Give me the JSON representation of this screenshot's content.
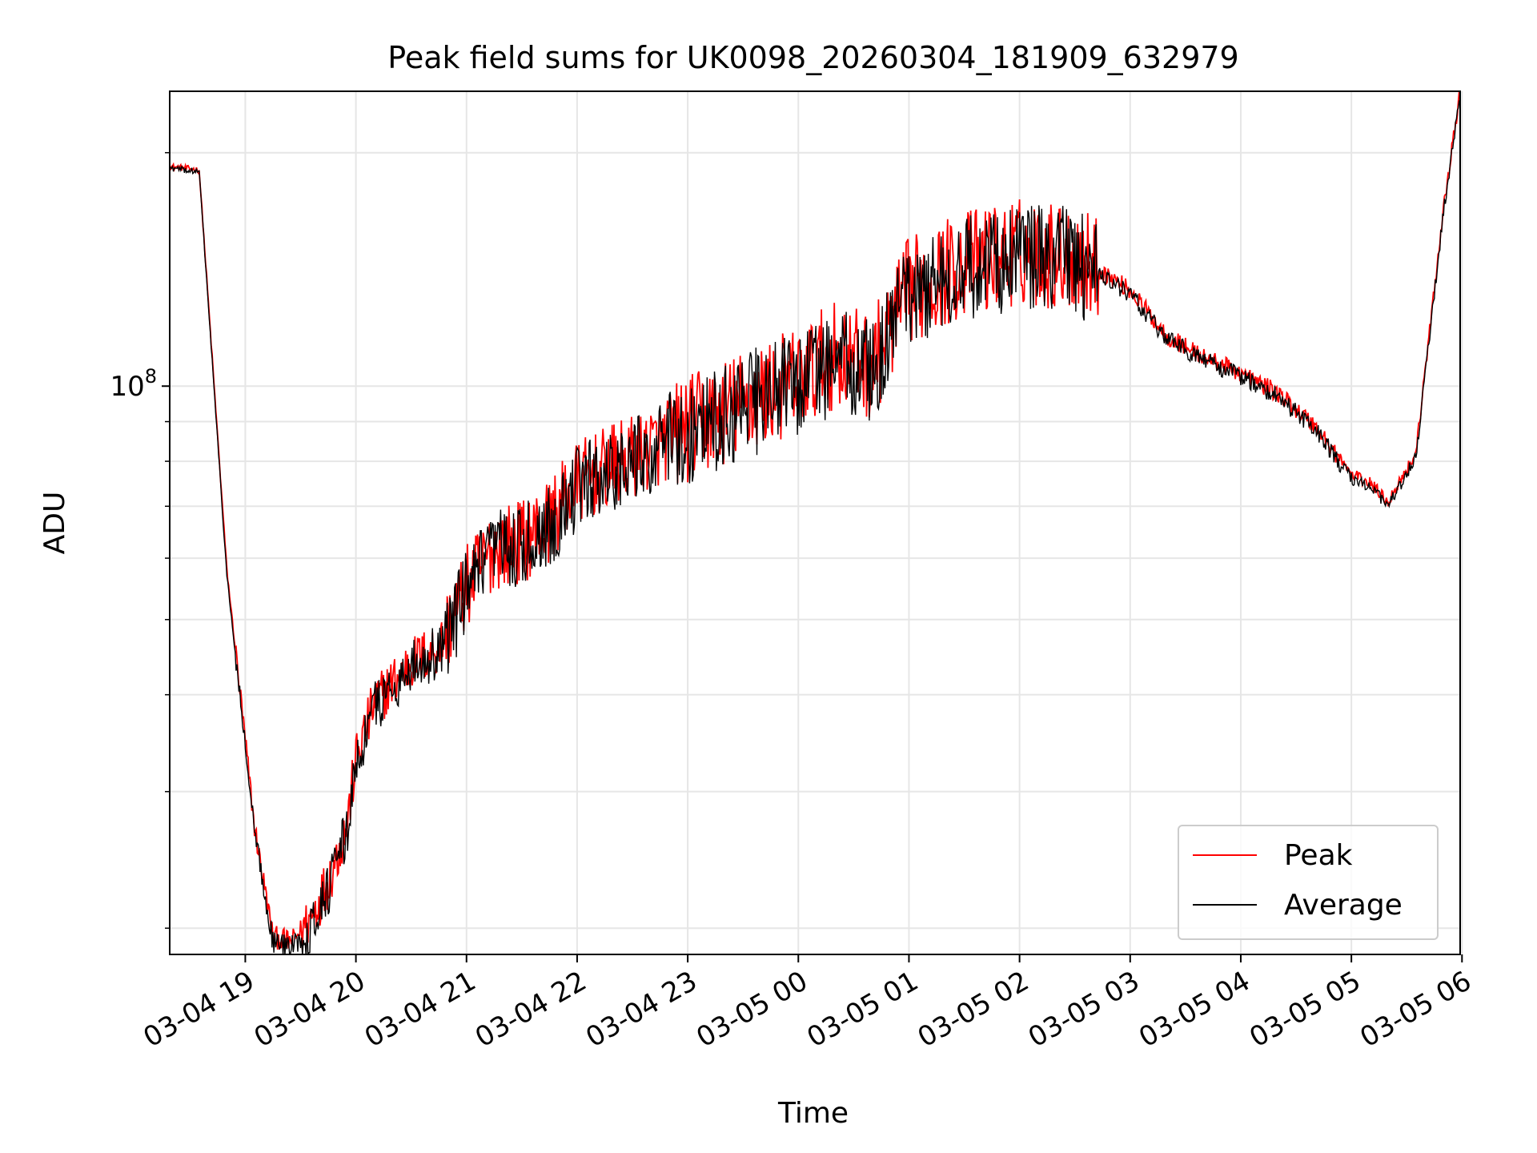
{
  "chart_data": {
    "type": "line",
    "title": "Peak field sums for UK0098_20260304_181909_632979",
    "xlabel": "Time",
    "ylabel": "ADU",
    "x_scale": "time",
    "y_scale": "log",
    "xlim": [
      "2026-03-04 18:19",
      "2026-03-05 05:59"
    ],
    "ylim": [
      18500000,
      240000000
    ],
    "x_ticks": [
      "03-04 19",
      "03-04 20",
      "03-04 21",
      "03-04 22",
      "03-04 23",
      "03-05 00",
      "03-05 01",
      "03-05 02",
      "03-05 03",
      "03-05 04",
      "03-05 05",
      "03-05 06"
    ],
    "y_ticks": [
      {
        "value": 100000000,
        "base": "10",
        "exp": "8"
      }
    ],
    "y_minor_ticks": [
      20000000,
      30000000,
      40000000,
      50000000,
      60000000,
      70000000,
      80000000,
      90000000,
      200000000
    ],
    "grid": true,
    "legend_position": "lower right",
    "legend": [
      {
        "label": "Peak",
        "color": "#ff0000"
      },
      {
        "label": "Average",
        "color": "#000000"
      }
    ],
    "series": [
      {
        "name": "Peak",
        "color": "#ff0000",
        "x": [
          "2026-03-04 18:19",
          "2026-03-04 18:35",
          "2026-03-04 18:50",
          "2026-03-04 19:05",
          "2026-03-04 19:15",
          "2026-03-04 19:25",
          "2026-03-04 19:35",
          "2026-03-04 19:45",
          "2026-03-04 19:55",
          "2026-03-04 20:00",
          "2026-03-04 20:10",
          "2026-03-04 20:30",
          "2026-03-04 20:45",
          "2026-03-04 21:00",
          "2026-03-04 21:15",
          "2026-03-04 21:30",
          "2026-03-04 21:45",
          "2026-03-04 22:00",
          "2026-03-04 22:30",
          "2026-03-04 23:00",
          "2026-03-04 23:30",
          "2026-03-05 00:00",
          "2026-03-05 00:20",
          "2026-03-05 00:40",
          "2026-03-05 01:00",
          "2026-03-05 01:30",
          "2026-03-05 02:00",
          "2026-03-05 02:30",
          "2026-03-05 02:50",
          "2026-03-05 03:00",
          "2026-03-05 03:20",
          "2026-03-05 03:40",
          "2026-03-05 04:00",
          "2026-03-05 04:20",
          "2026-03-05 04:40",
          "2026-03-05 05:00",
          "2026-03-05 05:10",
          "2026-03-05 05:20",
          "2026-03-05 05:35",
          "2026-03-05 05:50",
          "2026-03-05 05:59"
        ],
        "values": [
          192000000,
          190000000,
          58000000,
          27000000,
          19500000,
          19200000,
          20500000,
          23000000,
          27000000,
          33000000,
          39000000,
          44000000,
          46000000,
          55000000,
          62000000,
          63000000,
          67000000,
          75000000,
          81000000,
          88000000,
          95000000,
          102000000,
          110000000,
          106000000,
          133000000,
          144000000,
          149000000,
          147000000,
          138000000,
          133000000,
          116000000,
          109000000,
          104000000,
          98000000,
          89000000,
          77000000,
          75000000,
          71000000,
          82000000,
          170000000,
          240000000
        ]
      },
      {
        "name": "Average",
        "color": "#000000",
        "x": [
          "2026-03-04 18:19",
          "2026-03-04 18:35",
          "2026-03-04 18:50",
          "2026-03-04 19:05",
          "2026-03-04 19:15",
          "2026-03-04 19:25",
          "2026-03-04 19:35",
          "2026-03-04 19:45",
          "2026-03-04 19:55",
          "2026-03-04 20:00",
          "2026-03-04 20:10",
          "2026-03-04 20:30",
          "2026-03-04 20:45",
          "2026-03-04 21:00",
          "2026-03-04 21:15",
          "2026-03-04 21:30",
          "2026-03-04 21:45",
          "2026-03-04 22:00",
          "2026-03-04 22:30",
          "2026-03-04 23:00",
          "2026-03-04 23:30",
          "2026-03-05 00:00",
          "2026-03-05 00:20",
          "2026-03-05 00:40",
          "2026-03-05 01:00",
          "2026-03-05 01:30",
          "2026-03-05 02:00",
          "2026-03-05 02:30",
          "2026-03-05 02:50",
          "2026-03-05 03:00",
          "2026-03-05 03:20",
          "2026-03-05 03:40",
          "2026-03-05 04:00",
          "2026-03-05 04:20",
          "2026-03-05 04:40",
          "2026-03-05 05:00",
          "2026-03-05 05:10",
          "2026-03-05 05:20",
          "2026-03-05 05:35",
          "2026-03-05 05:50",
          "2026-03-05 05:59"
        ],
        "values": [
          191000000,
          189000000,
          57000000,
          26500000,
          19200000,
          18900000,
          20000000,
          22500000,
          26500000,
          32500000,
          38500000,
          43500000,
          45500000,
          54000000,
          61000000,
          62000000,
          66000000,
          74000000,
          80000000,
          87000000,
          94000000,
          101000000,
          108000000,
          104000000,
          131000000,
          142000000,
          147000000,
          145000000,
          136000000,
          131000000,
          115000000,
          108000000,
          103000000,
          97000000,
          88000000,
          76000000,
          74000000,
          70000000,
          81000000,
          168000000,
          238000000
        ]
      }
    ]
  }
}
